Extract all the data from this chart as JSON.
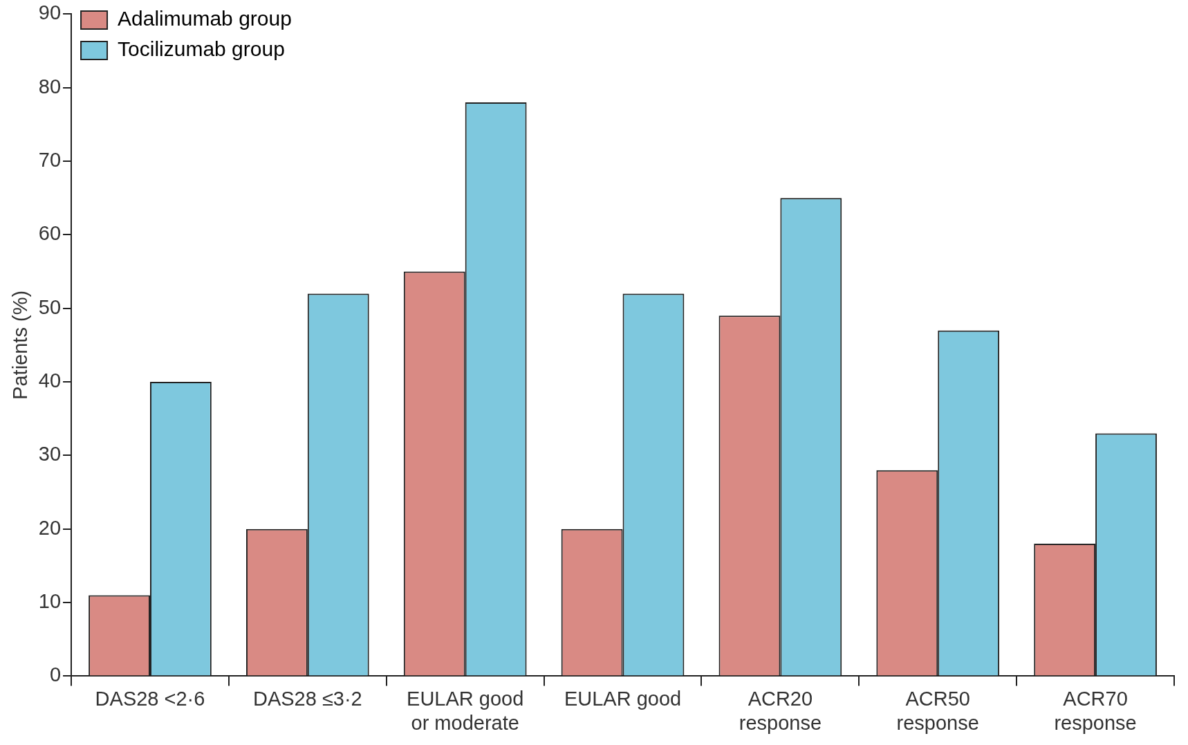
{
  "chart_data": {
    "type": "bar",
    "ylabel": "Patients (%)",
    "categories": [
      "DAS28 <2·6",
      "DAS28 ≤3·2",
      "EULAR good\nor moderate",
      "EULAR good",
      "ACR20\nresponse",
      "ACR50\nresponse",
      "ACR70\nresponse"
    ],
    "series": [
      {
        "name": "Adalimumab group",
        "color": "#d98a84",
        "values": [
          11,
          20,
          55,
          20,
          49,
          28,
          18
        ]
      },
      {
        "name": "Tocilizumab group",
        "color": "#7ec8de",
        "values": [
          40,
          52,
          78,
          52,
          65,
          47,
          33
        ]
      }
    ],
    "ylim": [
      0,
      90
    ],
    "yticks": [
      0,
      10,
      20,
      30,
      40,
      50,
      60,
      70,
      80,
      90
    ],
    "grid": false,
    "legend": "top left"
  }
}
